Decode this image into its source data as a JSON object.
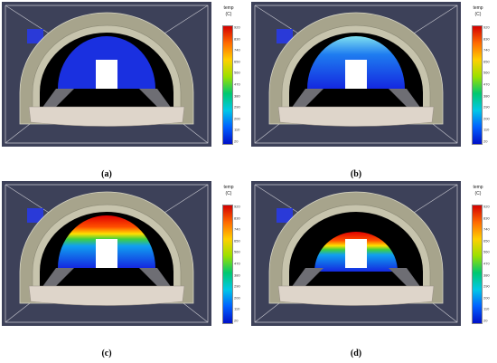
{
  "panels": [
    {
      "label": "(a)",
      "colorbar": {
        "title": "temp",
        "unit": "(C)",
        "ticks": [
          "920",
          "830",
          "740",
          "650",
          "560",
          "470",
          "380",
          "290",
          "200",
          "110",
          "20"
        ]
      }
    },
    {
      "label": "(b)",
      "colorbar": {
        "title": "temp",
        "unit": "(C)",
        "ticks": [
          "920",
          "830",
          "740",
          "650",
          "560",
          "470",
          "380",
          "290",
          "200",
          "110",
          "20"
        ]
      }
    },
    {
      "label": "(c)",
      "colorbar": {
        "title": "temp",
        "unit": "(C)",
        "ticks": [
          "920",
          "830",
          "740",
          "650",
          "560",
          "470",
          "380",
          "290",
          "200",
          "110",
          "20"
        ]
      }
    },
    {
      "label": "(d)",
      "colorbar": {
        "title": "temp",
        "unit": "(C)",
        "ticks": [
          "920",
          "830",
          "740",
          "650",
          "560",
          "470",
          "380",
          "290",
          "200",
          "110",
          "20"
        ]
      }
    }
  ]
}
